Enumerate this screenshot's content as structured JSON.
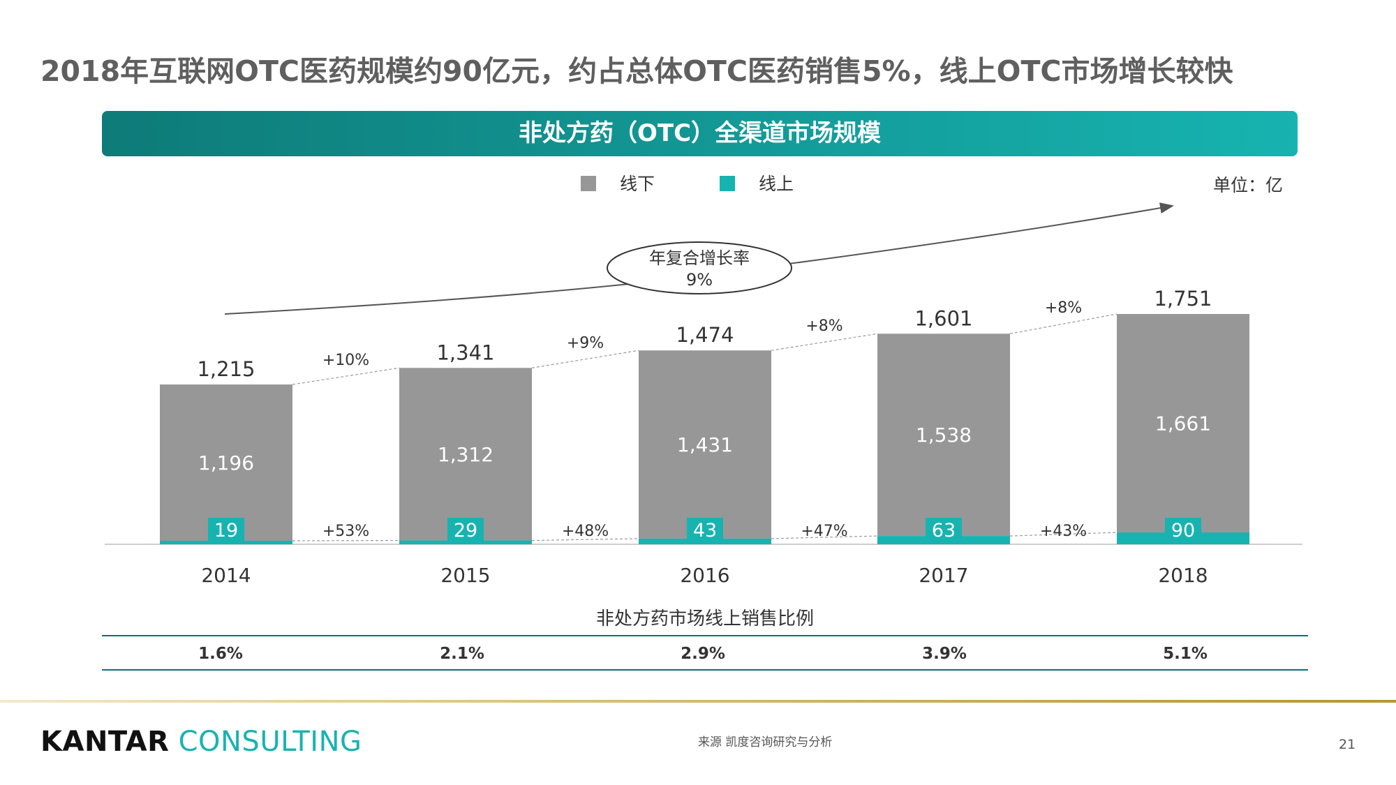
{
  "headline": "2018年互联网OTC医药规模约90亿元，约占总体OTC医药销售5%，线上OTC市场增长较快",
  "banner_title": "非处方药（OTC）全渠道市场规模",
  "unit_label": "单位：亿",
  "legend": [
    {
      "label": "线下",
      "color": "#979797"
    },
    {
      "label": "线上",
      "color": "#17b3b0"
    }
  ],
  "cagr": {
    "label": "年复合增长率",
    "value": "9%"
  },
  "chart_data": {
    "type": "bar",
    "stacked": true,
    "categories": [
      "2014",
      "2015",
      "2016",
      "2017",
      "2018"
    ],
    "series": [
      {
        "name": "线下",
        "values": [
          1196,
          1312,
          1431,
          1538,
          1661
        ],
        "labels": [
          "1,196",
          "1,312",
          "1,431",
          "1,538",
          "1,661"
        ]
      },
      {
        "name": "线上",
        "values": [
          19,
          29,
          43,
          63,
          90
        ],
        "labels": [
          "19",
          "29",
          "43",
          "63",
          "90"
        ]
      }
    ],
    "totals": [
      1215,
      1341,
      1474,
      1601,
      1751
    ],
    "total_labels": [
      "1,215",
      "1,341",
      "1,474",
      "1,601",
      "1,751"
    ],
    "offline_growth": [
      "+10%",
      "+9%",
      "+8%",
      "+8%"
    ],
    "online_growth": [
      "+53%",
      "+48%",
      "+47%",
      "+43%"
    ],
    "ylim": [
      0,
      1751
    ],
    "grid": false
  },
  "ratio": {
    "title": "非处方药市场线上销售比例",
    "values": [
      "1.6%",
      "2.1%",
      "2.9%",
      "3.9%",
      "5.1%"
    ]
  },
  "footer": {
    "logo_part1": "KANTAR",
    "logo_part2": "CONSULTING",
    "source": "来源 凯度咨询研究与分析",
    "page": "21"
  }
}
